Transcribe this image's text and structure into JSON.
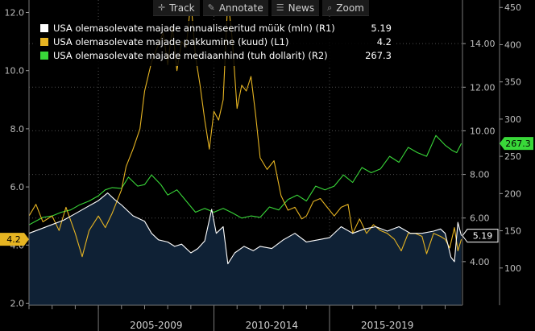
{
  "toolbar": {
    "track_label": "Track",
    "annotate_label": "Annotate",
    "news_label": "News",
    "zoom_label": "Zoom"
  },
  "chart_data": {
    "type": "line",
    "title": "",
    "x_tick_labels": [
      "2005-2009",
      "2010-2014",
      "2015-2019"
    ],
    "x_range": [
      2002.0,
      2020.75
    ],
    "left_axis": {
      "ticks": [
        "12.0",
        "10.0",
        "8.0",
        "6.0",
        "4.0",
        "2.0"
      ],
      "range": [
        1.93,
        12.43
      ]
    },
    "middle_axis": {
      "ticks": [
        "14.00",
        "12.00",
        "10.00",
        "8.00",
        "6.00",
        "4.00"
      ],
      "range": [
        2.0,
        16.0
      ]
    },
    "right_axis": {
      "ticks": [
        "450",
        "400",
        "350",
        "300",
        "250",
        "200",
        "150",
        "100"
      ],
      "range": [
        50,
        460
      ]
    },
    "legend": [
      {
        "label": "USA olemasolevate majade annualiseeritud müük (mln) (R1)",
        "value": "5.19",
        "color": "#ffffff"
      },
      {
        "label": "USA olemasolevate majade pakkumine (kuud) (L1)",
        "value": "4.2",
        "color": "#e6b422"
      },
      {
        "label": "USA olemasolevate majade mediaanhind (tuh dollarit) (R2)",
        "value": "267.3",
        "color": "#39d839"
      }
    ],
    "value_tags": [
      {
        "text": "4.2",
        "series": "supply"
      },
      {
        "text": "5.19",
        "series": "sales"
      },
      {
        "text": "267.3",
        "series": "price"
      }
    ],
    "series": [
      {
        "name": "USA olemasolevate majade annualiseeritud müük (mln) (R1)",
        "axis": "middle",
        "color": "#ffffff",
        "area_fill": "#0f2135",
        "points": [
          [
            2002.0,
            5.3
          ],
          [
            2002.5,
            5.5
          ],
          [
            2003.0,
            5.7
          ],
          [
            2003.5,
            5.9
          ],
          [
            2004.0,
            6.2
          ],
          [
            2004.5,
            6.5
          ],
          [
            2005.0,
            6.8
          ],
          [
            2005.4,
            7.15
          ],
          [
            2005.7,
            6.85
          ],
          [
            2006.0,
            6.6
          ],
          [
            2006.5,
            6.1
          ],
          [
            2007.0,
            5.85
          ],
          [
            2007.3,
            5.3
          ],
          [
            2007.6,
            5.0
          ],
          [
            2008.0,
            4.9
          ],
          [
            2008.3,
            4.7
          ],
          [
            2008.6,
            4.8
          ],
          [
            2009.0,
            4.4
          ],
          [
            2009.3,
            4.6
          ],
          [
            2009.6,
            4.95
          ],
          [
            2009.9,
            6.4
          ],
          [
            2010.1,
            5.3
          ],
          [
            2010.4,
            5.6
          ],
          [
            2010.6,
            3.9
          ],
          [
            2010.9,
            4.4
          ],
          [
            2011.3,
            4.7
          ],
          [
            2011.7,
            4.5
          ],
          [
            2012.0,
            4.7
          ],
          [
            2012.5,
            4.6
          ],
          [
            2013.0,
            5.0
          ],
          [
            2013.5,
            5.3
          ],
          [
            2014.0,
            4.9
          ],
          [
            2014.5,
            5.0
          ],
          [
            2015.0,
            5.1
          ],
          [
            2015.5,
            5.6
          ],
          [
            2016.0,
            5.3
          ],
          [
            2016.5,
            5.5
          ],
          [
            2017.0,
            5.6
          ],
          [
            2017.5,
            5.4
          ],
          [
            2018.0,
            5.6
          ],
          [
            2018.5,
            5.3
          ],
          [
            2019.0,
            5.3
          ],
          [
            2019.5,
            5.4
          ],
          [
            2019.8,
            5.5
          ],
          [
            2020.0,
            5.3
          ],
          [
            2020.25,
            4.2
          ],
          [
            2020.4,
            4.0
          ],
          [
            2020.55,
            5.8
          ],
          [
            2020.7,
            5.19
          ]
        ]
      },
      {
        "name": "USA olemasolevate majade pakkumine (kuud) (L1)",
        "axis": "left",
        "color": "#e6b422",
        "points": [
          [
            2002.0,
            5.0
          ],
          [
            2002.3,
            5.4
          ],
          [
            2002.6,
            4.8
          ],
          [
            2003.0,
            5.0
          ],
          [
            2003.3,
            4.5
          ],
          [
            2003.6,
            5.3
          ],
          [
            2004.0,
            4.4
          ],
          [
            2004.3,
            3.6
          ],
          [
            2004.6,
            4.5
          ],
          [
            2005.0,
            5.0
          ],
          [
            2005.3,
            4.6
          ],
          [
            2005.6,
            5.1
          ],
          [
            2006.0,
            5.9
          ],
          [
            2006.2,
            6.7
          ],
          [
            2006.5,
            7.3
          ],
          [
            2006.8,
            8.0
          ],
          [
            2007.0,
            9.3
          ],
          [
            2007.3,
            10.3
          ],
          [
            2007.5,
            10.7
          ],
          [
            2007.8,
            11.3
          ],
          [
            2008.0,
            10.2
          ],
          [
            2008.2,
            11.5
          ],
          [
            2008.4,
            10.0
          ],
          [
            2008.6,
            11.0
          ],
          [
            2008.8,
            10.8
          ],
          [
            2009.0,
            12.4
          ],
          [
            2009.2,
            10.5
          ],
          [
            2009.4,
            9.5
          ],
          [
            2009.6,
            8.3
          ],
          [
            2009.8,
            7.3
          ],
          [
            2010.0,
            8.6
          ],
          [
            2010.2,
            8.3
          ],
          [
            2010.4,
            9.0
          ],
          [
            2010.6,
            12.5
          ],
          [
            2010.8,
            11.0
          ],
          [
            2011.0,
            8.7
          ],
          [
            2011.2,
            9.5
          ],
          [
            2011.4,
            9.3
          ],
          [
            2011.6,
            9.8
          ],
          [
            2011.8,
            8.5
          ],
          [
            2012.0,
            7.0
          ],
          [
            2012.3,
            6.6
          ],
          [
            2012.6,
            6.9
          ],
          [
            2012.9,
            5.7
          ],
          [
            2013.2,
            5.2
          ],
          [
            2013.5,
            5.3
          ],
          [
            2013.8,
            4.9
          ],
          [
            2014.0,
            5.0
          ],
          [
            2014.3,
            5.5
          ],
          [
            2014.6,
            5.6
          ],
          [
            2014.9,
            5.3
          ],
          [
            2015.2,
            5.0
          ],
          [
            2015.5,
            5.3
          ],
          [
            2015.8,
            5.4
          ],
          [
            2016.0,
            4.4
          ],
          [
            2016.3,
            4.9
          ],
          [
            2016.6,
            4.4
          ],
          [
            2016.9,
            4.7
          ],
          [
            2017.2,
            4.5
          ],
          [
            2017.5,
            4.4
          ],
          [
            2017.8,
            4.2
          ],
          [
            2018.1,
            3.8
          ],
          [
            2018.4,
            4.4
          ],
          [
            2018.7,
            4.4
          ],
          [
            2019.0,
            4.3
          ],
          [
            2019.2,
            3.7
          ],
          [
            2019.5,
            4.4
          ],
          [
            2019.8,
            4.3
          ],
          [
            2020.0,
            4.2
          ],
          [
            2020.2,
            3.9
          ],
          [
            2020.4,
            4.6
          ],
          [
            2020.55,
            3.8
          ],
          [
            2020.7,
            4.2
          ]
        ]
      },
      {
        "name": "USA olemasolevate majade mediaanhind (tuh dollarit) (R2)",
        "axis": "right",
        "color": "#39d839",
        "points": [
          [
            2002.0,
            158
          ],
          [
            2002.3,
            163
          ],
          [
            2002.6,
            168
          ],
          [
            2003.0,
            170
          ],
          [
            2003.4,
            175
          ],
          [
            2003.8,
            178
          ],
          [
            2004.2,
            185
          ],
          [
            2004.6,
            190
          ],
          [
            2005.0,
            197
          ],
          [
            2005.3,
            205
          ],
          [
            2005.6,
            208
          ],
          [
            2006.0,
            207
          ],
          [
            2006.3,
            222
          ],
          [
            2006.7,
            210
          ],
          [
            2007.0,
            212
          ],
          [
            2007.3,
            225
          ],
          [
            2007.7,
            212
          ],
          [
            2008.0,
            198
          ],
          [
            2008.4,
            205
          ],
          [
            2008.8,
            190
          ],
          [
            2009.2,
            175
          ],
          [
            2009.6,
            180
          ],
          [
            2010.0,
            175
          ],
          [
            2010.4,
            180
          ],
          [
            2010.8,
            174
          ],
          [
            2011.2,
            167
          ],
          [
            2011.6,
            170
          ],
          [
            2012.0,
            168
          ],
          [
            2012.4,
            182
          ],
          [
            2012.8,
            178
          ],
          [
            2013.2,
            192
          ],
          [
            2013.6,
            198
          ],
          [
            2014.0,
            190
          ],
          [
            2014.4,
            210
          ],
          [
            2014.8,
            205
          ],
          [
            2015.2,
            210
          ],
          [
            2015.6,
            225
          ],
          [
            2016.0,
            215
          ],
          [
            2016.4,
            235
          ],
          [
            2016.8,
            228
          ],
          [
            2017.2,
            233
          ],
          [
            2017.6,
            250
          ],
          [
            2018.0,
            242
          ],
          [
            2018.4,
            262
          ],
          [
            2018.8,
            255
          ],
          [
            2019.2,
            250
          ],
          [
            2019.6,
            278
          ],
          [
            2020.0,
            265
          ],
          [
            2020.3,
            258
          ],
          [
            2020.5,
            255
          ],
          [
            2020.7,
            267.3
          ]
        ]
      }
    ]
  }
}
